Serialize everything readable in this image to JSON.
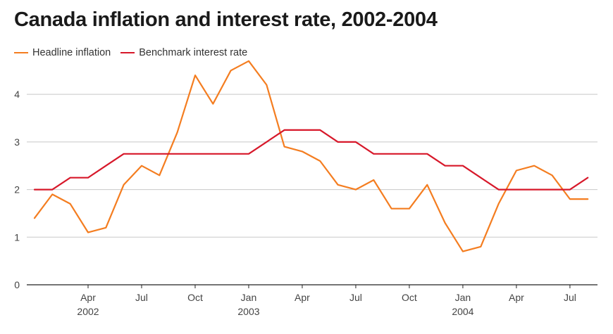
{
  "chart_data": {
    "type": "line",
    "title": "Canada inflation and interest rate, 2002-2004",
    "xlabel": "",
    "ylabel": "",
    "ylim": [
      0,
      4.8
    ],
    "yticks": [
      "0",
      "1",
      "2",
      "3",
      "4"
    ],
    "grid": true,
    "legend": "top-left",
    "x": [
      "2002-01",
      "2002-02",
      "2002-03",
      "2002-04",
      "2002-05",
      "2002-06",
      "2002-07",
      "2002-08",
      "2002-09",
      "2002-10",
      "2002-11",
      "2002-12",
      "2003-01",
      "2003-02",
      "2003-03",
      "2003-04",
      "2003-05",
      "2003-06",
      "2003-07",
      "2003-08",
      "2003-09",
      "2003-10",
      "2003-11",
      "2003-12",
      "2004-01",
      "2004-02",
      "2004-03",
      "2004-04",
      "2004-05",
      "2004-06",
      "2004-07",
      "2004-08",
      "2004-09"
    ],
    "xticks": [
      {
        "month": "Apr",
        "year": "2002",
        "index": 3
      },
      {
        "month": "Jul",
        "year": "",
        "index": 6
      },
      {
        "month": "Oct",
        "year": "",
        "index": 9
      },
      {
        "month": "Jan",
        "year": "2003",
        "index": 12
      },
      {
        "month": "Apr",
        "year": "",
        "index": 15
      },
      {
        "month": "Jul",
        "year": "",
        "index": 18
      },
      {
        "month": "Oct",
        "year": "",
        "index": 21
      },
      {
        "month": "Jan",
        "year": "2004",
        "index": 24
      },
      {
        "month": "Apr",
        "year": "",
        "index": 27
      },
      {
        "month": "Jul",
        "year": "",
        "index": 30
      }
    ],
    "series": [
      {
        "name": "Headline inflation",
        "color": "#f47d20",
        "values": [
          1.4,
          1.9,
          1.7,
          1.1,
          1.2,
          2.1,
          2.5,
          2.3,
          3.2,
          4.4,
          3.8,
          4.5,
          4.7,
          4.2,
          2.9,
          2.8,
          2.6,
          2.1,
          2.0,
          2.2,
          1.6,
          1.6,
          2.1,
          1.3,
          0.7,
          0.8,
          1.7,
          2.4,
          2.5,
          2.3,
          1.8,
          1.8,
          null
        ]
      },
      {
        "name": "Benchmark interest rate",
        "color": "#d7182a",
        "values": [
          2.0,
          2.0,
          2.25,
          2.25,
          2.5,
          2.75,
          2.75,
          2.75,
          2.75,
          2.75,
          2.75,
          2.75,
          2.75,
          3.0,
          3.25,
          3.25,
          3.25,
          3.0,
          3.0,
          2.75,
          2.75,
          2.75,
          2.75,
          2.5,
          2.5,
          2.25,
          2.0,
          2.0,
          2.0,
          2.0,
          2.0,
          2.25,
          null
        ]
      }
    ]
  }
}
